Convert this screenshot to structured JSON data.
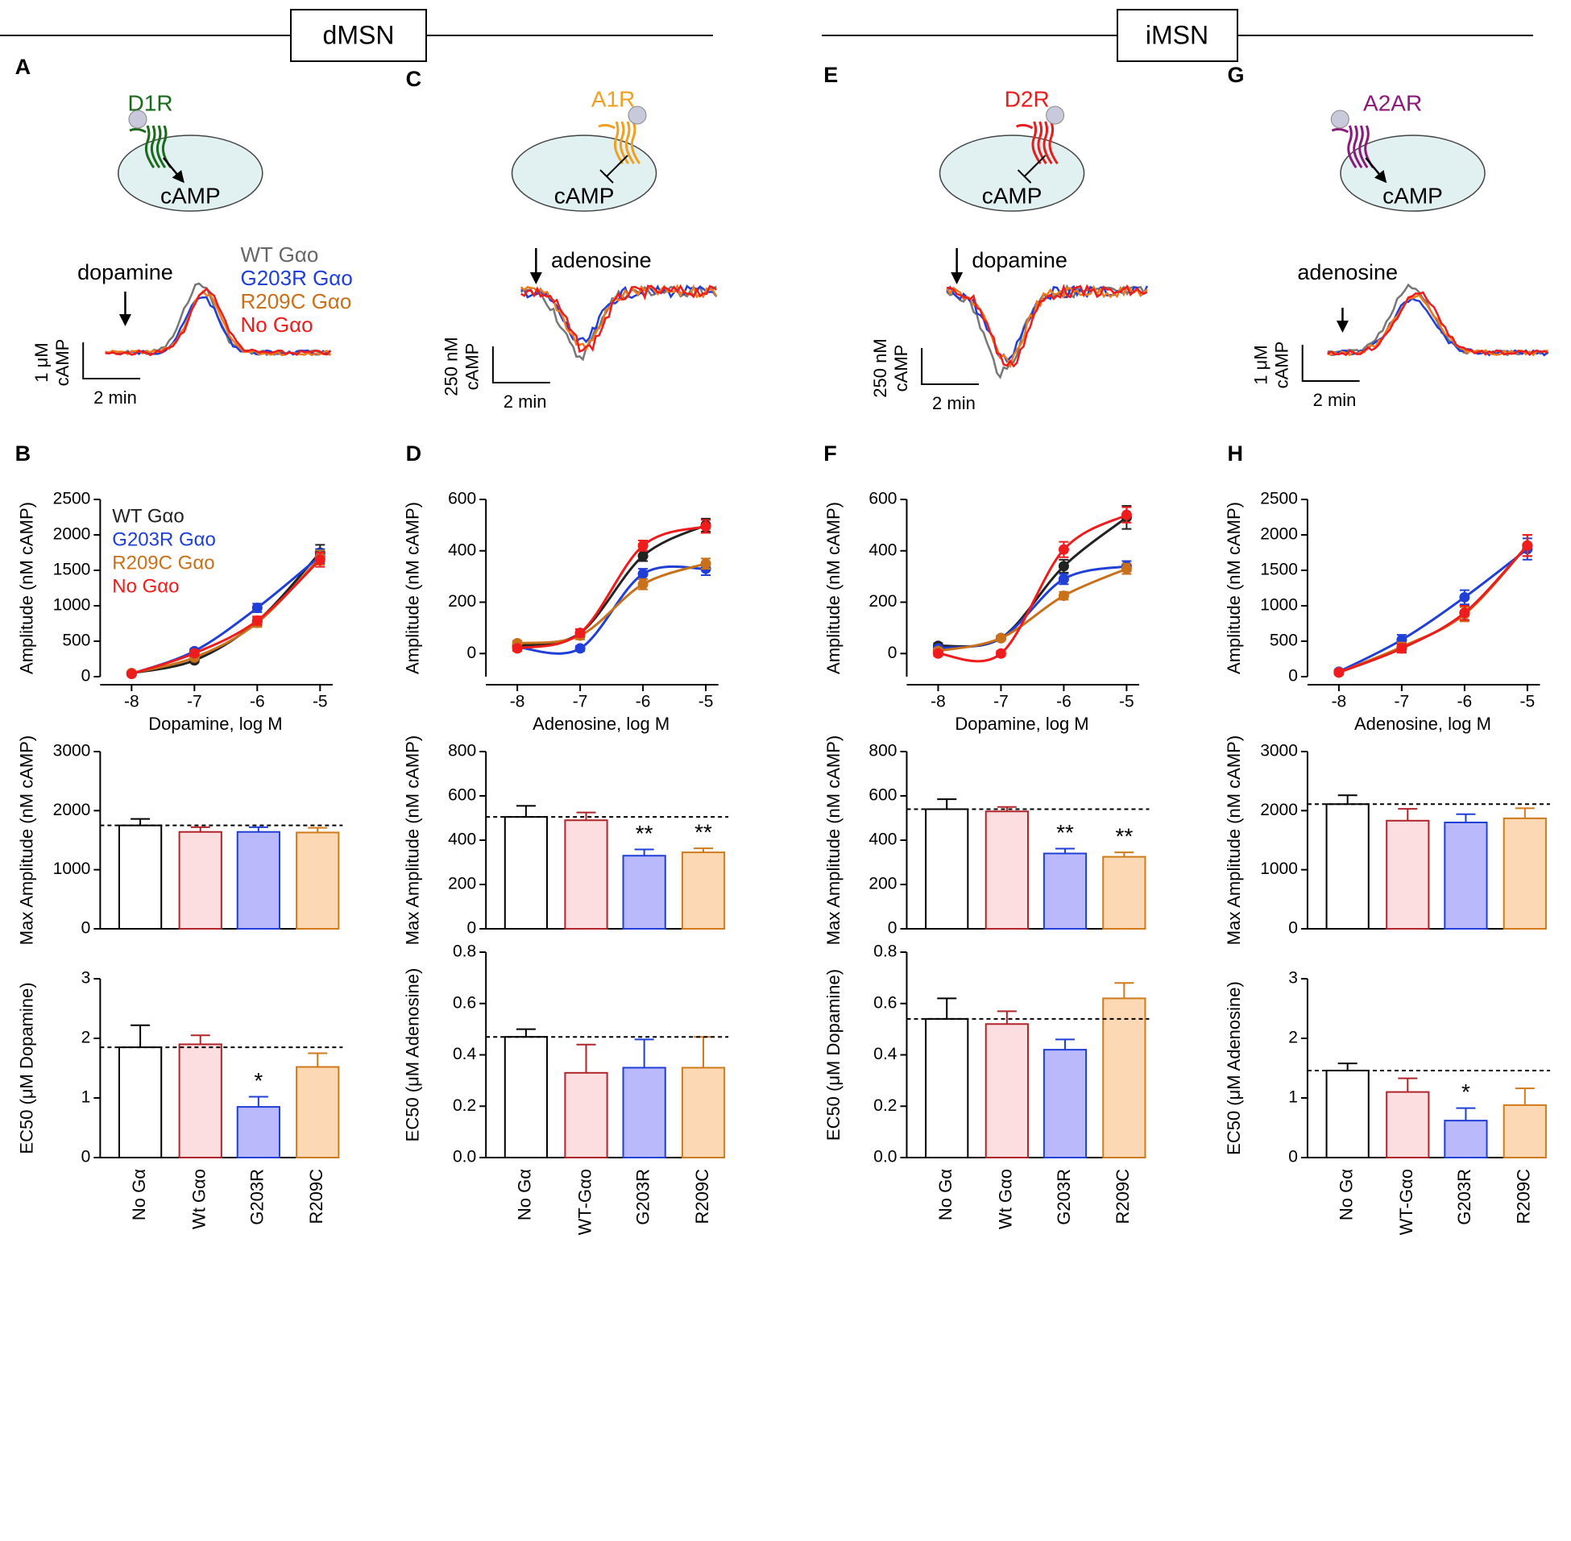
{
  "header": {
    "groups": [
      "dMSN",
      "iMSN"
    ]
  },
  "panels": [
    {
      "letter": "A",
      "receptor": "D1R",
      "receptor_color": "#1a6b1a",
      "product": "cAMP",
      "effect": "stimulate",
      "agonist": "dopamine",
      "scale_y": [
        "1 μM",
        "cAMP"
      ],
      "scale_x": "2 min",
      "trace_colors": [
        "#777777",
        "#1f3fd6",
        "#f07a1a",
        "#ee1c1c"
      ],
      "legend": [
        {
          "name": "WT Gαo",
          "color": "#666666"
        },
        {
          "name": "G203R Gαo",
          "color": "#1f3fd6"
        },
        {
          "name": "R209C Gαo",
          "color": "#c8701a"
        },
        {
          "name": "No Gαo",
          "color": "#ee1c1c"
        }
      ]
    },
    {
      "letter": "C",
      "receptor": "A1R",
      "receptor_color": "#f0a020",
      "product": "cAMP",
      "effect": "inhibit",
      "agonist": "adenosine",
      "scale_y": [
        "250 nM",
        "cAMP"
      ],
      "scale_x": "2 min",
      "trace_colors": [
        "#777777",
        "#1f3fd6",
        "#f07a1a",
        "#ee1c1c"
      ]
    },
    {
      "letter": "E",
      "receptor": "D2R",
      "receptor_color": "#e81c1c",
      "product": "cAMP",
      "effect": "inhibit",
      "agonist": "dopamine",
      "scale_y": [
        "250 nM",
        "cAMP"
      ],
      "scale_x": "2 min",
      "trace_colors": [
        "#777777",
        "#1f3fd6",
        "#f07a1a",
        "#ee1c1c"
      ]
    },
    {
      "letter": "G",
      "receptor": "A2AR",
      "receptor_color": "#8b1a7a",
      "product": "cAMP",
      "effect": "stimulate",
      "agonist": "adenosine",
      "scale_y": [
        "1 μM",
        "cAMP"
      ],
      "scale_x": "2 min",
      "trace_colors": [
        "#777777",
        "#1f3fd6",
        "#f07a1a",
        "#ee1c1c"
      ]
    }
  ],
  "chart_data": [
    {
      "type": "line",
      "panel": "B",
      "x": [
        -8,
        -7,
        -6,
        -5
      ],
      "xlim": [
        -8.5,
        -4.8
      ],
      "xticks": [
        -8,
        -7,
        -6,
        -5
      ],
      "ylim": [
        0,
        2500
      ],
      "yticks": [
        0,
        500,
        1000,
        1500,
        2000,
        2500
      ],
      "x_label": "Dopamine, log M",
      "y_label": "Amplitude (nM cAMP)",
      "legend": "upper left",
      "series": [
        {
          "name": "WT Gαo",
          "color": "#222222",
          "values": [
            50,
            230,
            780,
            1750
          ],
          "errors": [
            20,
            30,
            60,
            110
          ]
        },
        {
          "name": "G203R Gαo",
          "color": "#1f3fd6",
          "values": [
            40,
            360,
            970,
            1700
          ],
          "errors": [
            20,
            30,
            60,
            100
          ]
        },
        {
          "name": "R209C Gαo",
          "color": "#c8701a",
          "values": [
            50,
            270,
            760,
            1680
          ],
          "errors": [
            20,
            30,
            60,
            100
          ]
        },
        {
          "name": "No Gαo",
          "color": "#ee1c1c",
          "values": [
            40,
            330,
            790,
            1650
          ],
          "errors": [
            20,
            30,
            60,
            100
          ]
        }
      ]
    },
    {
      "type": "line",
      "panel": "D",
      "x": [
        -8,
        -7,
        -6,
        -5
      ],
      "xlim": [
        -8.5,
        -4.8
      ],
      "xticks": [
        -8,
        -7,
        -6,
        -5
      ],
      "ylim": [
        -90,
        600
      ],
      "yticks": [
        0,
        200,
        400,
        600
      ],
      "x_label": "Adenosine, log M",
      "y_label": "Amplitude (nM cAMP)",
      "series": [
        {
          "color": "#222222",
          "values": [
            30,
            80,
            380,
            500
          ],
          "errors": [
            10,
            15,
            20,
            25
          ]
        },
        {
          "color": "#1f3fd6",
          "values": [
            25,
            20,
            310,
            330
          ],
          "errors": [
            10,
            10,
            20,
            25
          ]
        },
        {
          "color": "#c8701a",
          "values": [
            40,
            70,
            270,
            350
          ],
          "errors": [
            10,
            15,
            20,
            20
          ]
        },
        {
          "color": "#ee1c1c",
          "values": [
            20,
            80,
            420,
            495
          ],
          "errors": [
            10,
            15,
            20,
            25
          ]
        }
      ]
    },
    {
      "type": "line",
      "panel": "F",
      "x": [
        -8,
        -7,
        -6,
        -5
      ],
      "xlim": [
        -8.5,
        -4.8
      ],
      "xticks": [
        -8,
        -7,
        -6,
        -5
      ],
      "ylim": [
        -90,
        600
      ],
      "yticks": [
        0,
        200,
        400,
        600
      ],
      "x_label": "Dopamine, log M",
      "y_label": "Amplitude (nM cAMP)",
      "series": [
        {
          "color": "#222222",
          "values": [
            30,
            60,
            340,
            530
          ],
          "errors": [
            10,
            10,
            25,
            45
          ]
        },
        {
          "color": "#1f3fd6",
          "values": [
            20,
            60,
            290,
            340
          ],
          "errors": [
            10,
            10,
            20,
            20
          ]
        },
        {
          "color": "#c8701a",
          "values": [
            10,
            60,
            225,
            330
          ],
          "errors": [
            10,
            10,
            15,
            20
          ]
        },
        {
          "color": "#ee1c1c",
          "values": [
            0,
            0,
            405,
            540
          ],
          "errors": [
            10,
            10,
            30,
            30
          ]
        }
      ]
    },
    {
      "type": "line",
      "panel": "H",
      "x": [
        -8,
        -7,
        -6,
        -5
      ],
      "xlim": [
        -8.5,
        -4.8
      ],
      "xticks": [
        -8,
        -7,
        -6,
        -5
      ],
      "ylim": [
        0,
        2500
      ],
      "yticks": [
        0,
        500,
        1000,
        1500,
        2000,
        2500
      ],
      "x_label": "Adenosine, log M",
      "y_label": "Amplitude (nM cAMP)",
      "series": [
        {
          "color": "#222222",
          "values": [
            60,
            400,
            900,
            1850
          ],
          "errors": [
            30,
            60,
            100,
            150
          ]
        },
        {
          "color": "#1f3fd6",
          "values": [
            70,
            520,
            1120,
            1800
          ],
          "errors": [
            30,
            70,
            100,
            150
          ]
        },
        {
          "color": "#c8701a",
          "values": [
            60,
            420,
            880,
            1850
          ],
          "errors": [
            30,
            60,
            100,
            150
          ]
        },
        {
          "color": "#ee1c1c",
          "values": [
            60,
            400,
            900,
            1850
          ],
          "errors": [
            30,
            60,
            100,
            150
          ]
        }
      ]
    },
    {
      "type": "bar",
      "y_label": "Max Amplitude (nM cAMP)",
      "ylim": [
        0,
        3000
      ],
      "yticks": [
        0,
        1000,
        2000,
        3000
      ],
      "colors": [
        "#ffffff",
        "#fcdde0",
        "#b9b9fb",
        "#fcd9b4"
      ],
      "edge_colors": [
        "#000000",
        "#b0242a",
        "#1f3fd6",
        "#d07a1a"
      ],
      "values": [
        1750,
        1640,
        1640,
        1630
      ],
      "errors": [
        110,
        80,
        80,
        80
      ],
      "reference_line": true
    },
    {
      "type": "bar",
      "y_label": "Max Amplitude (nM cAMP)",
      "ylim": [
        0,
        800
      ],
      "yticks": [
        0,
        200,
        400,
        600,
        800
      ],
      "colors": [
        "#ffffff",
        "#fcdde0",
        "#b9b9fb",
        "#fcd9b4"
      ],
      "edge_colors": [
        "#000000",
        "#b0242a",
        "#1f3fd6",
        "#d07a1a"
      ],
      "values": [
        505,
        490,
        330,
        345
      ],
      "errors": [
        50,
        35,
        28,
        18
      ],
      "annotations": [
        null,
        null,
        "**",
        "**"
      ],
      "reference_line": true
    },
    {
      "type": "bar",
      "y_label": "Max Amplitude (nM cAMP)",
      "ylim": [
        0,
        800
      ],
      "yticks": [
        0,
        200,
        400,
        600,
        800
      ],
      "colors": [
        "#ffffff",
        "#fcdde0",
        "#b9b9fb",
        "#fcd9b4"
      ],
      "edge_colors": [
        "#000000",
        "#b0242a",
        "#1f3fd6",
        "#d07a1a"
      ],
      "values": [
        540,
        530,
        340,
        325
      ],
      "errors": [
        45,
        20,
        22,
        20
      ],
      "annotations": [
        null,
        null,
        "**",
        "**"
      ],
      "reference_line": true
    },
    {
      "type": "bar",
      "y_label": "Max Amplitude (nM cAMP)",
      "ylim": [
        0,
        3000
      ],
      "yticks": [
        0,
        1000,
        2000,
        3000
      ],
      "colors": [
        "#ffffff",
        "#fcdde0",
        "#b9b9fb",
        "#fcd9b4"
      ],
      "edge_colors": [
        "#000000",
        "#b0242a",
        "#1f3fd6",
        "#d07a1a"
      ],
      "values": [
        2110,
        1830,
        1800,
        1870
      ],
      "errors": [
        150,
        200,
        140,
        170
      ],
      "reference_line": true
    },
    {
      "type": "bar",
      "y_label": "EC50 (μM Dopamine)",
      "ylim": [
        0,
        3
      ],
      "yticks": [
        0,
        1,
        2,
        3
      ],
      "categories": [
        "No Gα",
        "Wt Gαo",
        "G203R",
        "R209C"
      ],
      "colors": [
        "#ffffff",
        "#fcdde0",
        "#b9b9fb",
        "#fcd9b4"
      ],
      "edge_colors": [
        "#000000",
        "#b0242a",
        "#1f3fd6",
        "#d07a1a"
      ],
      "values": [
        1.85,
        1.9,
        0.85,
        1.52
      ],
      "errors": [
        0.37,
        0.15,
        0.17,
        0.23
      ],
      "annotations": [
        null,
        null,
        "*",
        null
      ],
      "reference_line": true
    },
    {
      "type": "bar",
      "y_label": "EC50 (μM Adenosine)",
      "ylim": [
        0,
        0.8
      ],
      "yticks": [
        {
          "value": 0,
          "label": "0.0"
        },
        0.2,
        0.4,
        0.6,
        0.8
      ],
      "categories": [
        "No Gα",
        "WT-Gαo",
        "G203R",
        "R209C"
      ],
      "colors": [
        "#ffffff",
        "#fcdde0",
        "#b9b9fb",
        "#fcd9b4"
      ],
      "edge_colors": [
        "#000000",
        "#b0242a",
        "#1f3fd6",
        "#d07a1a"
      ],
      "values": [
        0.47,
        0.33,
        0.35,
        0.35
      ],
      "errors": [
        0.03,
        0.11,
        0.11,
        0.12
      ],
      "reference_line": true
    },
    {
      "type": "bar",
      "y_label": "EC50 (μM Dopamine)",
      "ylim": [
        0,
        0.8
      ],
      "yticks": [
        {
          "value": 0,
          "label": "0.0"
        },
        0.2,
        0.4,
        0.6,
        0.8
      ],
      "categories": [
        "No Gα",
        "Wt Gαo",
        "G203R",
        "R209C"
      ],
      "colors": [
        "#ffffff",
        "#fcdde0",
        "#b9b9fb",
        "#fcd9b4"
      ],
      "edge_colors": [
        "#000000",
        "#b0242a",
        "#1f3fd6",
        "#d07a1a"
      ],
      "values": [
        0.54,
        0.52,
        0.42,
        0.62
      ],
      "errors": [
        0.08,
        0.05,
        0.04,
        0.06
      ],
      "reference_line": true
    },
    {
      "type": "bar",
      "y_label": "EC50 (μM Adenosine)",
      "ylim": [
        0,
        3
      ],
      "yticks": [
        0,
        1,
        2,
        3
      ],
      "categories": [
        "No Gα",
        "WT-Gαo",
        "G203R",
        "R209C"
      ],
      "colors": [
        "#ffffff",
        "#fcdde0",
        "#b9b9fb",
        "#fcd9b4"
      ],
      "edge_colors": [
        "#000000",
        "#b0242a",
        "#1f3fd6",
        "#d07a1a"
      ],
      "values": [
        1.46,
        1.1,
        0.62,
        0.88
      ],
      "errors": [
        0.12,
        0.23,
        0.21,
        0.28
      ],
      "annotations": [
        null,
        null,
        "*",
        null
      ],
      "reference_line": true
    }
  ]
}
